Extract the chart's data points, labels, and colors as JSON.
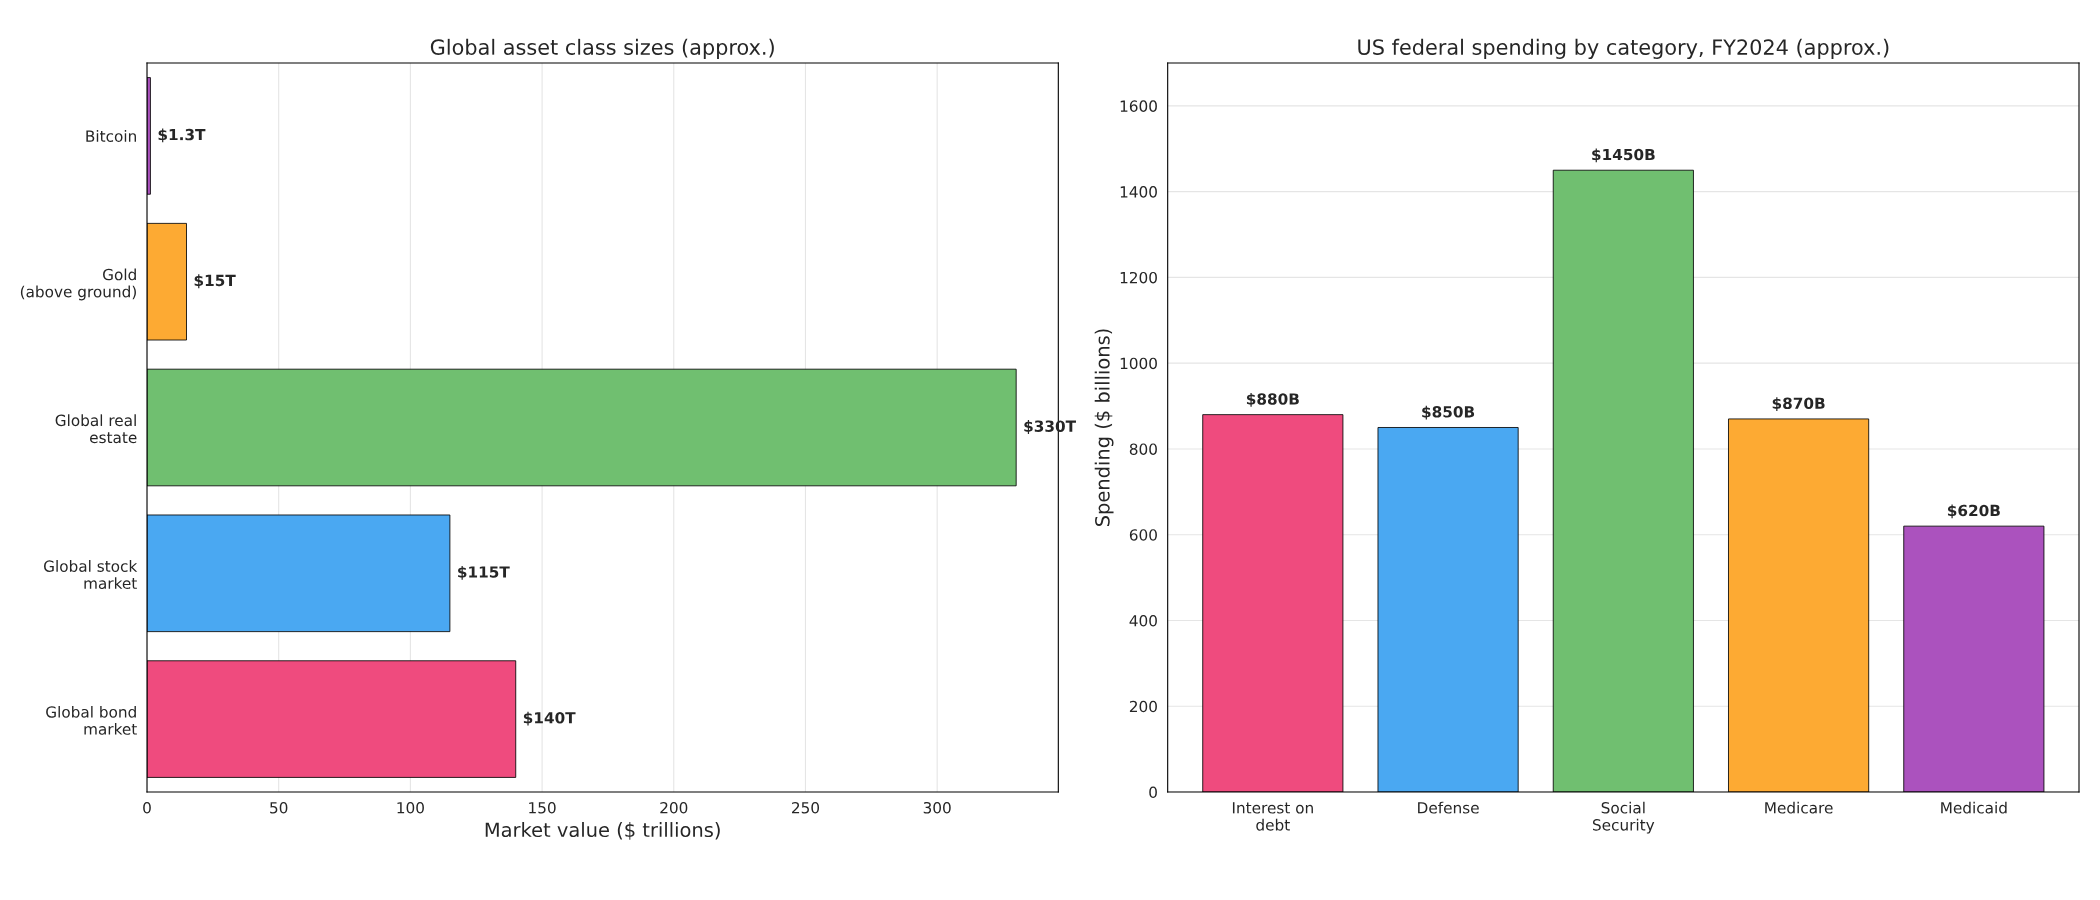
{
  "chart_data": [
    {
      "type": "bar",
      "orientation": "horizontal",
      "title": "Global asset class sizes (approx.)",
      "xlabel": "Market value ($ trillions)",
      "categories": [
        "Bitcoin",
        "Gold\n(above ground)",
        "Global real\nestate",
        "Global stock\nmarket",
        "Global bond\nmarket"
      ],
      "values": [
        1.3,
        15,
        330,
        115,
        140
      ],
      "colors": [
        "#ab52be",
        "#fdaa33",
        "#70bf70",
        "#4aa8f2",
        "#ef4b7e"
      ],
      "value_labels": [
        "$1.3T",
        "$15T",
        "$330T",
        "$115T",
        "$140T"
      ],
      "xlim": [
        0,
        346
      ],
      "xticks": [
        0,
        50,
        100,
        150,
        200,
        250,
        300
      ],
      "grid": "x"
    },
    {
      "type": "bar",
      "title": "US federal spending by category, FY2024 (approx.)",
      "ylabel": "Spending ($ billions)",
      "categories": [
        "Interest on\ndebt",
        "Defense",
        "Social\nSecurity",
        "Medicare",
        "Medicaid"
      ],
      "values": [
        880,
        850,
        1450,
        870,
        620
      ],
      "colors": [
        "#ef4b7e",
        "#4aa8f2",
        "#70bf70",
        "#fdaa33",
        "#ab52be"
      ],
      "value_labels": [
        "$880B",
        "$850B",
        "$1450B",
        "$870B",
        "$620B"
      ],
      "ylim": [
        0,
        1700
      ],
      "yticks": [
        0,
        200,
        400,
        600,
        800,
        1000,
        1200,
        1400,
        1600
      ],
      "grid": "y"
    }
  ]
}
